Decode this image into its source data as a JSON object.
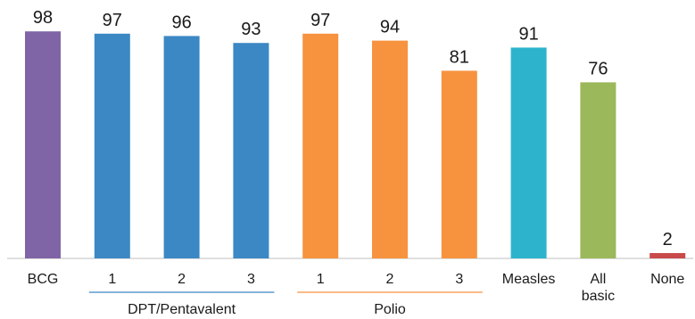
{
  "chart_data": {
    "type": "bar",
    "categories": [
      "BCG",
      "1",
      "2",
      "3",
      "1",
      "2",
      "3",
      "Measles",
      "All basic",
      "None"
    ],
    "category_lines": [
      [
        "BCG"
      ],
      [
        "1"
      ],
      [
        "2"
      ],
      [
        "3"
      ],
      [
        "1"
      ],
      [
        "2"
      ],
      [
        "3"
      ],
      [
        "Measles"
      ],
      [
        "All",
        "basic"
      ],
      [
        "None"
      ]
    ],
    "values": [
      98,
      97,
      96,
      93,
      97,
      94,
      81,
      91,
      76,
      2
    ],
    "colors": [
      "#7f65a6",
      "#3b88c4",
      "#3b88c4",
      "#3b88c4",
      "#f7923f",
      "#f7923f",
      "#f7923f",
      "#2db4cc",
      "#9bb85a",
      "#c84a4a"
    ],
    "groups": [
      {
        "label": "DPT/Pentavalent",
        "start": 1,
        "end": 3,
        "color": "#3b88c4"
      },
      {
        "label": "Polio",
        "start": 4,
        "end": 6,
        "color": "#f7923f"
      }
    ],
    "ylim": [
      0,
      100
    ],
    "grid": false,
    "title": "",
    "xlabel": "",
    "ylabel": ""
  }
}
